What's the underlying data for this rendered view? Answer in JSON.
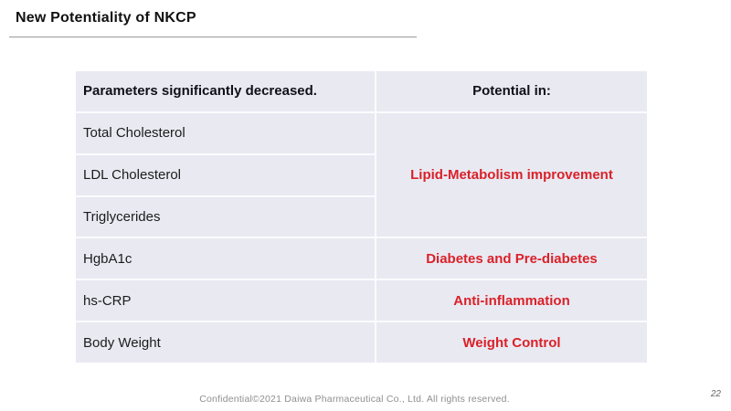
{
  "slide": {
    "title": "New Potentiality of NKCP",
    "footer": "Confidential©2021 Daiwa Pharmaceutical Co., Ltd. All rights reserved.",
    "page_number": "22"
  },
  "table": {
    "headers": {
      "parameters": "Parameters significantly decreased.",
      "potential": "Potential in:"
    },
    "parameters": [
      "Total Cholesterol",
      "LDL Cholesterol",
      "Triglycerides",
      "HgbA1c",
      "hs-CRP",
      "Body Weight"
    ],
    "potentials": [
      {
        "label": "Lipid-Metabolism improvement",
        "applies_to": [
          "Total Cholesterol",
          "LDL Cholesterol",
          "Triglycerides"
        ]
      },
      {
        "label": "Diabetes and Pre-diabetes",
        "applies_to": [
          "HgbA1c"
        ]
      },
      {
        "label": "Anti-inflammation",
        "applies_to": [
          "hs-CRP"
        ]
      },
      {
        "label": "Weight Control",
        "applies_to": [
          "Body Weight"
        ]
      }
    ],
    "colors": {
      "cell_background": "#e9e9f2",
      "divider": "#fbfbfe",
      "accent_red": "#da2128",
      "text": "#1c1c1c"
    }
  }
}
